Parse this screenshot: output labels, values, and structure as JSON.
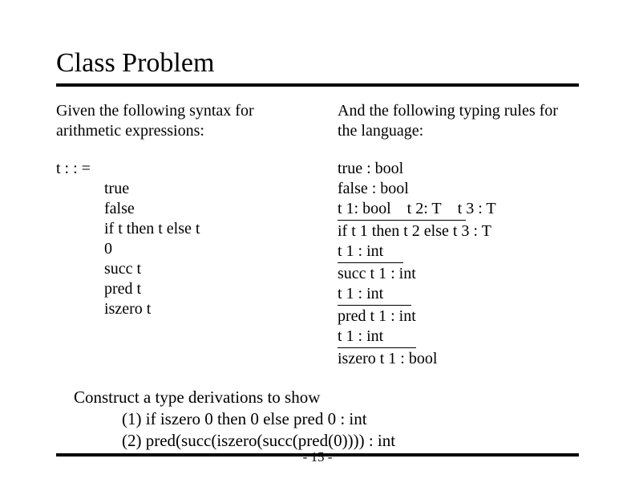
{
  "title": "Class Problem",
  "left": {
    "intro": "Given the following syntax for arithmetic expressions:",
    "head": "t : : =",
    "items": [
      "true",
      "false",
      "if t then t else t",
      "0",
      "succ t",
      "pred t",
      "iszero t"
    ]
  },
  "right": {
    "intro": "And the following typing rules for the language:",
    "r0": "true : bool",
    "r1": "false : bool",
    "rule1_top": "t 1: bool t 2: T t 3 : T",
    "rule1_bot": "if t 1 then t 2 else t 3 : T",
    "rule2_top": "t 1 : int",
    "rule2_bot": "succ t 1 : int",
    "rule3_top": "t 1 : int",
    "rule3_bot": "pred t 1 : int",
    "rule4_top": "t 1 : int",
    "rule4_bot": "iszero t 1 : bool"
  },
  "construct": {
    "lead": "Construct a type derivations to show",
    "item1": "(1) if iszero 0 then 0 else pred 0 : int",
    "item2": "(2) pred(succ(iszero(succ(pred(0)))) : int"
  },
  "pagenum": "- 15 -",
  "colors": {
    "text": "#000000",
    "background": "#ffffff",
    "rule": "#000000"
  }
}
